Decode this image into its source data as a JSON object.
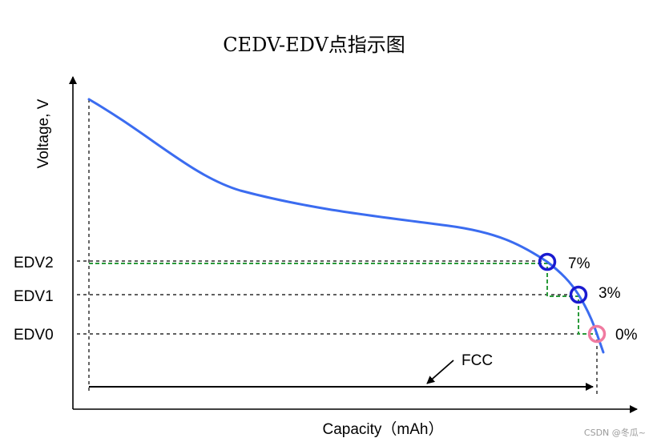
{
  "title": "CEDV-EDV点指示图",
  "y_axis_label": "Voltage, V",
  "x_axis_label": "Capacity（mAh）",
  "levels": {
    "edv2": {
      "label": "EDV2",
      "percent": "7%"
    },
    "edv1": {
      "label": "EDV1",
      "percent": "3%"
    },
    "edv0": {
      "label": "EDV0",
      "percent": "0%"
    }
  },
  "fcc_label": "FCC",
  "watermark": "CSDN @冬瓜~",
  "colors": {
    "curve": "#3b6cf0",
    "edv_marker": "#1a1ad0",
    "edv0_marker": "#f07aa0",
    "green_guide": "#2a9a3a",
    "axis": "#000000"
  }
}
